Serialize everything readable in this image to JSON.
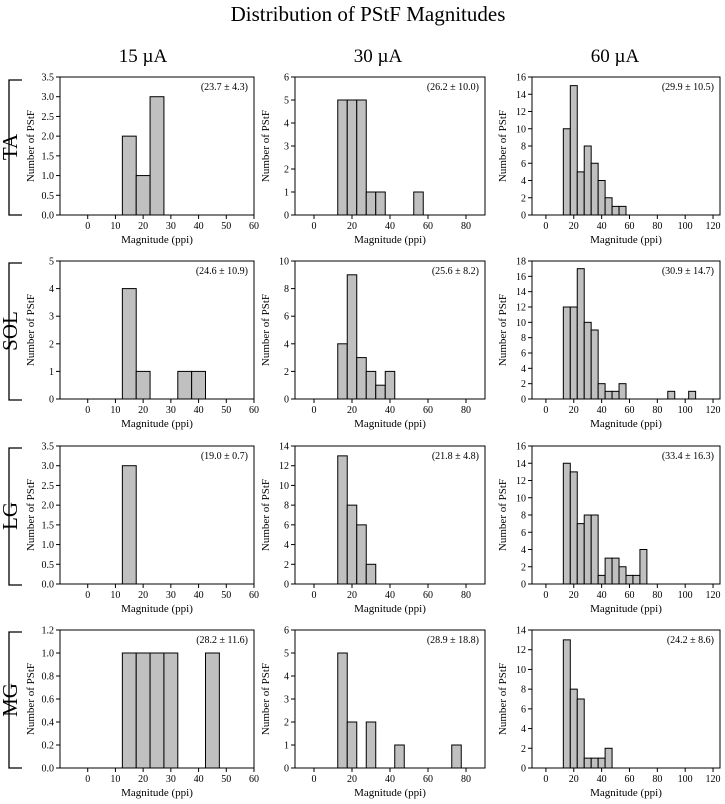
{
  "figure": {
    "title": "Distribution of PStF Magnitudes",
    "columns": [
      "15 µA",
      "30 µA",
      "60 µA"
    ],
    "rows": [
      "TA",
      "SOL",
      "LG",
      "MG"
    ],
    "bar_color": "#c0c0c0",
    "edge_color": "#000000"
  },
  "chart_data": [
    {
      "type": "bar",
      "row": "TA",
      "current": "15 µA",
      "title": "",
      "xlabel": "Magnitude (ppi)",
      "ylabel": "Number of PStF",
      "annotation": "(23.7 ± 4.3)",
      "xlim": [
        -10,
        60
      ],
      "xticks": [
        0,
        10,
        20,
        30,
        40,
        50,
        60
      ],
      "ylim": [
        0,
        3.5
      ],
      "yticks": [
        "0.0",
        "0.5",
        "1.0",
        "1.5",
        "2.0",
        "2.5",
        "3.0",
        "3.5"
      ],
      "bin_width": 5,
      "bin_starts": [
        12.5,
        17.5,
        22.5
      ],
      "values": [
        2,
        1,
        3
      ]
    },
    {
      "type": "bar",
      "row": "TA",
      "current": "30 µA",
      "title": "",
      "xlabel": "Magnitude (ppi)",
      "ylabel": "Number of PStF",
      "annotation": "(26.2 ± 10.0)",
      "xlim": [
        -10,
        90
      ],
      "xticks": [
        0,
        20,
        40,
        60,
        80
      ],
      "ylim": [
        0,
        6
      ],
      "yticks": [
        "0",
        "1",
        "2",
        "3",
        "4",
        "5",
        "6"
      ],
      "bin_width": 5,
      "bin_starts": [
        12.5,
        17.5,
        22.5,
        27.5,
        32.5,
        52.5
      ],
      "values": [
        5,
        5,
        5,
        1,
        1,
        1
      ]
    },
    {
      "type": "bar",
      "row": "TA",
      "current": "60 µA",
      "title": "",
      "xlabel": "Magnitude (ppi)",
      "ylabel": "Number of PStF",
      "annotation": "(29.9 ± 10.5)",
      "xlim": [
        -10,
        125
      ],
      "xticks": [
        0,
        20,
        40,
        60,
        80,
        100,
        120
      ],
      "ylim": [
        0,
        16
      ],
      "yticks": [
        "0",
        "2",
        "4",
        "6",
        "8",
        "10",
        "12",
        "14",
        "16"
      ],
      "bin_width": 5,
      "bin_starts": [
        12.5,
        17.5,
        22.5,
        27.5,
        32.5,
        37.5,
        42.5,
        47.5,
        52.5
      ],
      "values": [
        10,
        15,
        5,
        8,
        6,
        4,
        2,
        1,
        1
      ]
    },
    {
      "type": "bar",
      "row": "SOL",
      "current": "15 µA",
      "title": "",
      "xlabel": "Magnitude (ppi)",
      "ylabel": "Number of PStF",
      "annotation": "(24.6 ± 10.9)",
      "xlim": [
        -10,
        60
      ],
      "xticks": [
        0,
        10,
        20,
        30,
        40,
        50,
        60
      ],
      "ylim": [
        0,
        5
      ],
      "yticks": [
        "0",
        "1",
        "2",
        "3",
        "4",
        "5"
      ],
      "bin_width": 5,
      "bin_starts": [
        12.5,
        17.5,
        32.5,
        37.5
      ],
      "values": [
        4,
        1,
        1,
        1
      ]
    },
    {
      "type": "bar",
      "row": "SOL",
      "current": "30 µA",
      "title": "",
      "xlabel": "Magnitude (ppi)",
      "ylabel": "Number of PStF",
      "annotation": "(25.6 ± 8.2)",
      "xlim": [
        -10,
        90
      ],
      "xticks": [
        0,
        20,
        40,
        60,
        80
      ],
      "ylim": [
        0,
        10
      ],
      "yticks": [
        "0",
        "2",
        "4",
        "6",
        "8",
        "10"
      ],
      "bin_width": 5,
      "bin_starts": [
        12.5,
        17.5,
        22.5,
        27.5,
        32.5,
        37.5
      ],
      "values": [
        4,
        9,
        3,
        2,
        1,
        2
      ]
    },
    {
      "type": "bar",
      "row": "SOL",
      "current": "60 µA",
      "title": "",
      "xlabel": "Magnitude (ppi)",
      "ylabel": "Number of PStF",
      "annotation": "(30.9 ± 14.7)",
      "xlim": [
        -10,
        125
      ],
      "xticks": [
        0,
        20,
        40,
        60,
        80,
        100,
        120
      ],
      "ylim": [
        0,
        18
      ],
      "yticks": [
        "0",
        "2",
        "4",
        "6",
        "8",
        "10",
        "12",
        "14",
        "16",
        "18"
      ],
      "bin_width": 5,
      "bin_starts": [
        12.5,
        17.5,
        22.5,
        27.5,
        32.5,
        37.5,
        42.5,
        47.5,
        52.5,
        87.5,
        102.5
      ],
      "values": [
        12,
        12,
        17,
        10,
        9,
        2,
        1,
        1,
        2,
        1,
        1
      ]
    },
    {
      "type": "bar",
      "row": "LG",
      "current": "15 µA",
      "title": "",
      "xlabel": "Magnitude (ppi)",
      "ylabel": "Number of PStF",
      "annotation": "(19.0 ± 0.7)",
      "xlim": [
        -10,
        60
      ],
      "xticks": [
        0,
        10,
        20,
        30,
        40,
        50,
        60
      ],
      "ylim": [
        0,
        3.5
      ],
      "yticks": [
        "0.0",
        "0.5",
        "1.0",
        "1.5",
        "2.0",
        "2.5",
        "3.0",
        "3.5"
      ],
      "bin_width": 5,
      "bin_starts": [
        12.5
      ],
      "values": [
        3
      ]
    },
    {
      "type": "bar",
      "row": "LG",
      "current": "30 µA",
      "title": "",
      "xlabel": "Magnitude (ppi)",
      "ylabel": "Number of PStF",
      "annotation": "(21.8 ± 4.8)",
      "xlim": [
        -10,
        90
      ],
      "xticks": [
        0,
        20,
        40,
        60,
        80
      ],
      "ylim": [
        0,
        14
      ],
      "yticks": [
        "0",
        "2",
        "4",
        "6",
        "8",
        "10",
        "12",
        "14"
      ],
      "bin_width": 5,
      "bin_starts": [
        12.5,
        17.5,
        22.5,
        27.5
      ],
      "values": [
        13,
        8,
        6,
        2
      ]
    },
    {
      "type": "bar",
      "row": "LG",
      "current": "60 µA",
      "title": "",
      "xlabel": "Magnitude (ppi)",
      "ylabel": "Number of PStF",
      "annotation": "(33.4 ± 16.3)",
      "xlim": [
        -10,
        125
      ],
      "xticks": [
        0,
        20,
        40,
        60,
        80,
        100,
        120
      ],
      "ylim": [
        0,
        16
      ],
      "yticks": [
        "0",
        "2",
        "4",
        "6",
        "8",
        "10",
        "12",
        "14",
        "16"
      ],
      "bin_width": 5,
      "bin_starts": [
        12.5,
        17.5,
        22.5,
        27.5,
        32.5,
        37.5,
        42.5,
        47.5,
        52.5,
        57.5,
        62.5,
        67.5
      ],
      "values": [
        14,
        13,
        7,
        8,
        8,
        1,
        3,
        3,
        2,
        1,
        1,
        4
      ]
    },
    {
      "type": "bar",
      "row": "MG",
      "current": "15 µA",
      "title": "",
      "xlabel": "Magnitude (ppi)",
      "ylabel": "Number of PStF",
      "annotation": "(28.2 ± 11.6)",
      "xlim": [
        -10,
        60
      ],
      "xticks": [
        0,
        10,
        20,
        30,
        40,
        50,
        60
      ],
      "ylim": [
        0,
        1.2
      ],
      "yticks": [
        "0.0",
        "0.2",
        "0.4",
        "0.6",
        "0.8",
        "1.0",
        "1.2"
      ],
      "bin_width": 5,
      "bin_starts": [
        12.5,
        17.5,
        22.5,
        27.5,
        42.5
      ],
      "values": [
        1,
        1,
        1,
        1,
        1
      ]
    },
    {
      "type": "bar",
      "row": "MG",
      "current": "30 µA",
      "title": "",
      "xlabel": "Magnitude (ppi)",
      "ylabel": "Number of PStF",
      "annotation": "(28.9 ± 18.8)",
      "xlim": [
        -10,
        90
      ],
      "xticks": [
        0,
        20,
        40,
        60,
        80
      ],
      "ylim": [
        0,
        6
      ],
      "yticks": [
        "0",
        "1",
        "2",
        "3",
        "4",
        "5",
        "6"
      ],
      "bin_width": 5,
      "bin_starts": [
        12.5,
        17.5,
        27.5,
        42.5,
        72.5
      ],
      "values": [
        5,
        2,
        2,
        1,
        1
      ]
    },
    {
      "type": "bar",
      "row": "MG",
      "current": "60 µA",
      "title": "",
      "xlabel": "Magnitude (ppi)",
      "ylabel": "Number of PStF",
      "annotation": "(24.2 ± 8.6)",
      "xlim": [
        -10,
        125
      ],
      "xticks": [
        0,
        20,
        40,
        60,
        80,
        100,
        120
      ],
      "ylim": [
        0,
        14
      ],
      "yticks": [
        "0",
        "2",
        "4",
        "6",
        "8",
        "10",
        "12",
        "14"
      ],
      "bin_width": 5,
      "bin_starts": [
        12.5,
        17.5,
        22.5,
        27.5,
        32.5,
        37.5,
        42.5
      ],
      "values": [
        13,
        8,
        7,
        1,
        1,
        1,
        2
      ]
    }
  ]
}
